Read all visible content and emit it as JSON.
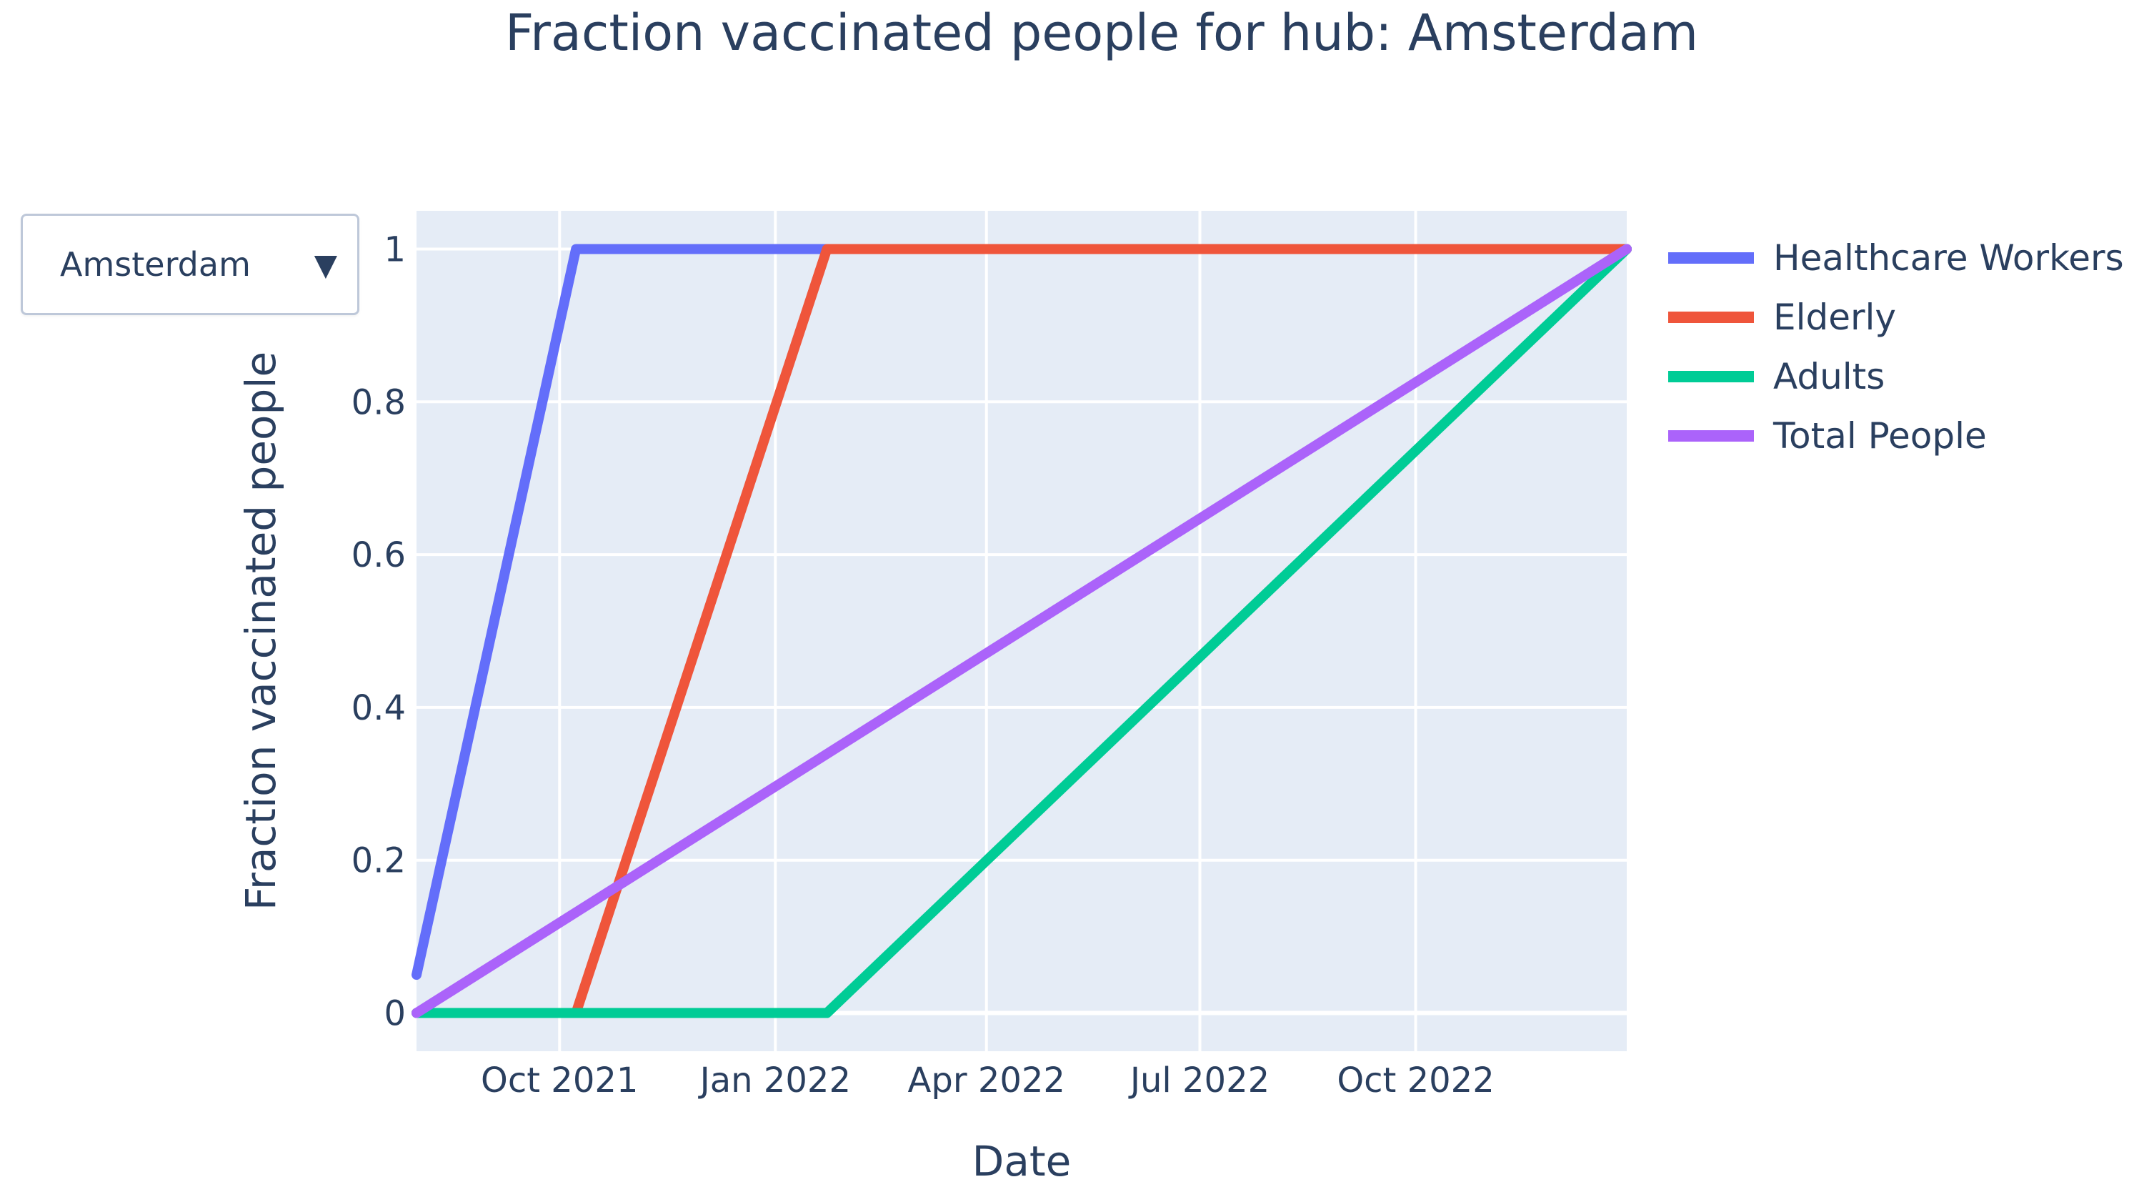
{
  "dropdown": {
    "selected": "Amsterdam",
    "arrow_glyph": "▼",
    "arrow_icon": "triangle-down-icon"
  },
  "chart_data": {
    "type": "line",
    "title": "Fraction vaccinated people for hub: Amsterdam",
    "xlabel": "Date",
    "ylabel": "Fraction vaccinated people",
    "xlim": [
      "2021-08-01",
      "2022-12-30"
    ],
    "ylim": [
      -0.05,
      1.05
    ],
    "x_ticks": [
      {
        "date": "2021-10-01",
        "label": "Oct 2021"
      },
      {
        "date": "2022-01-01",
        "label": "Jan 2022"
      },
      {
        "date": "2022-04-01",
        "label": "Apr 2022"
      },
      {
        "date": "2022-07-01",
        "label": "Jul 2022"
      },
      {
        "date": "2022-10-01",
        "label": "Oct 2022"
      }
    ],
    "y_ticks": [
      {
        "value": 0,
        "label": "0"
      },
      {
        "value": 0.2,
        "label": "0.2"
      },
      {
        "value": 0.4,
        "label": "0.4"
      },
      {
        "value": 0.6,
        "label": "0.6"
      },
      {
        "value": 0.8,
        "label": "0.8"
      },
      {
        "value": 1,
        "label": "1"
      }
    ],
    "grid": true,
    "legend_position": "right",
    "series": [
      {
        "name": "Healthcare Workers",
        "color": "#636efa",
        "points": [
          [
            "2021-08-01",
            0.05
          ],
          [
            "2021-10-08",
            1
          ],
          [
            "2022-12-30",
            1
          ]
        ]
      },
      {
        "name": "Elderly",
        "color": "#ef553b",
        "points": [
          [
            "2021-08-01",
            0
          ],
          [
            "2021-10-08",
            0
          ],
          [
            "2022-01-23",
            1
          ],
          [
            "2022-12-30",
            1
          ]
        ]
      },
      {
        "name": "Adults",
        "color": "#00cc96",
        "points": [
          [
            "2021-08-01",
            0
          ],
          [
            "2022-01-23",
            0
          ],
          [
            "2022-12-30",
            1
          ]
        ]
      },
      {
        "name": "Total People",
        "color": "#ab63fa",
        "points": [
          [
            "2021-08-01",
            0
          ],
          [
            "2022-12-30",
            1
          ]
        ]
      }
    ]
  }
}
